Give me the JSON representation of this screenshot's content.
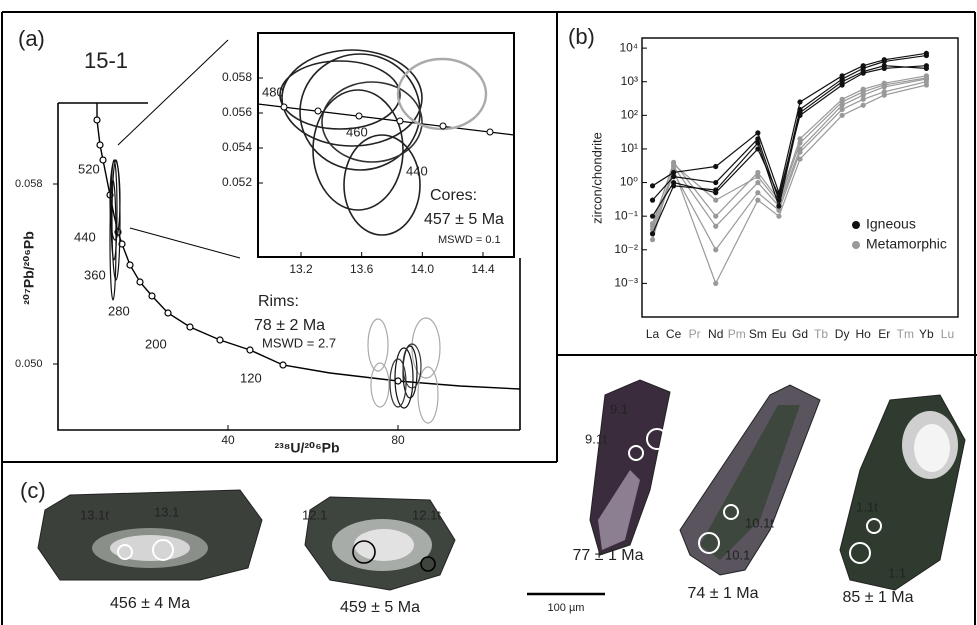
{
  "panel_a": {
    "label": "(a)",
    "sample": "15-1",
    "y_label": "²⁰⁷Pb/²⁰⁶Pb",
    "x_label": "²³⁸U/²⁰⁶Pb",
    "yticks": [
      0.058,
      {
        "value": 0.05,
        "label": "0.050"
      }
    ],
    "xticks": [
      40,
      80
    ],
    "concordia_ages": [
      520,
      440,
      360,
      280,
      200,
      120
    ],
    "rims": {
      "title": "Rims:",
      "age": "78 ± 2 Ma",
      "mswd": "MSWD = 2.7"
    },
    "inset": {
      "yticks": [
        0.058,
        0.056,
        0.054,
        0.052
      ],
      "xticks": [
        13.2,
        13.6,
        {
          "value": 14,
          "label": "14.0"
        },
        14.4
      ],
      "concordia_ages": [
        480,
        460,
        440
      ],
      "cores": {
        "title": "Cores:",
        "age": "457 ± 5 Ma",
        "mswd": "MSWD = 0.1"
      }
    }
  },
  "panel_b": {
    "label": "(b)",
    "type": "line",
    "y_label": "zircon/chondrite",
    "log_y": true,
    "ylim": [
      0.0001,
      20000
    ],
    "yticks": [
      {
        "value": 10000,
        "label": "10⁴"
      },
      {
        "value": 1000,
        "label": "10³"
      },
      {
        "value": 100,
        "label": "10²"
      },
      {
        "value": 10,
        "label": "10¹"
      },
      {
        "value": 1,
        "label": "10⁰"
      },
      {
        "value": 0.1,
        "label": "10⁻¹"
      },
      {
        "value": 0.01,
        "label": "10⁻²"
      },
      {
        "value": 0.001,
        "label": "10⁻³"
      }
    ],
    "categories": [
      "La",
      "Ce",
      "Pr",
      "Nd",
      "Pm",
      "Sm",
      "Eu",
      "Gd",
      "Tb",
      "Dy",
      "Ho",
      "Er",
      "Tm",
      "Yb",
      "Lu"
    ],
    "category_colors": [
      "#222",
      "#222",
      "#999",
      "#222",
      "#999",
      "#222",
      "#222",
      "#222",
      "#999",
      "#222",
      "#222",
      "#222",
      "#999",
      "#222",
      "#999"
    ],
    "groups": [
      {
        "name": "Metamorphic",
        "color": "#999999",
        "samples": [
          [
            0.05,
            4,
            null,
            0.1,
            null,
            2,
            0.3,
            20,
            null,
            300,
            600,
            900,
            null,
            1500,
            null
          ],
          [
            0.02,
            3,
            null,
            0.05,
            null,
            1,
            0.2,
            10,
            null,
            200,
            400,
            700,
            null,
            1200,
            null
          ],
          [
            0.03,
            2,
            null,
            0.01,
            null,
            0.5,
            0.15,
            8,
            null,
            150,
            300,
            500,
            null,
            1000,
            null
          ],
          [
            0.04,
            2.5,
            null,
            0.001,
            null,
            0.3,
            0.1,
            5,
            null,
            100,
            200,
            400,
            null,
            800,
            null
          ],
          [
            0.06,
            3.5,
            null,
            0.3,
            null,
            1.5,
            0.25,
            15,
            null,
            250,
            500,
            800,
            null,
            1300,
            null
          ]
        ]
      },
      {
        "name": "Igneous",
        "color": "#111111",
        "samples": [
          [
            0.8,
            2,
            null,
            3,
            null,
            30,
            0.5,
            250,
            null,
            1500,
            3000,
            4500,
            null,
            7000,
            null
          ],
          [
            0.3,
            1.5,
            null,
            1,
            null,
            20,
            0.3,
            150,
            null,
            1200,
            2500,
            4000,
            null,
            6000,
            null
          ],
          [
            0.1,
            1,
            null,
            0.5,
            null,
            10,
            0.4,
            100,
            null,
            800,
            1800,
            2500,
            null,
            3000,
            null
          ],
          [
            0.03,
            0.8,
            null,
            0.6,
            null,
            15,
            0.2,
            120,
            null,
            1000,
            2000,
            3000,
            null,
            2500,
            null
          ]
        ]
      }
    ]
  },
  "panel_c": {
    "label": "(c)",
    "grains": [
      {
        "spots": [
          "13.1t",
          "13.1"
        ],
        "age": "456 ± 4 Ma"
      },
      {
        "spots": [
          "12.1",
          "12.1t"
        ],
        "age": "459 ± 5 Ma"
      },
      {
        "spots": [
          "9.1",
          "9.1t"
        ],
        "age": "77 ± 1 Ma"
      },
      {
        "spots": [
          "10.1t",
          "10.1"
        ],
        "age": "74 ± 1 Ma"
      },
      {
        "spots": [
          "1.1t",
          "1.1"
        ],
        "age": "85 ± 1 Ma"
      }
    ],
    "scale_bar": "100 µm"
  }
}
